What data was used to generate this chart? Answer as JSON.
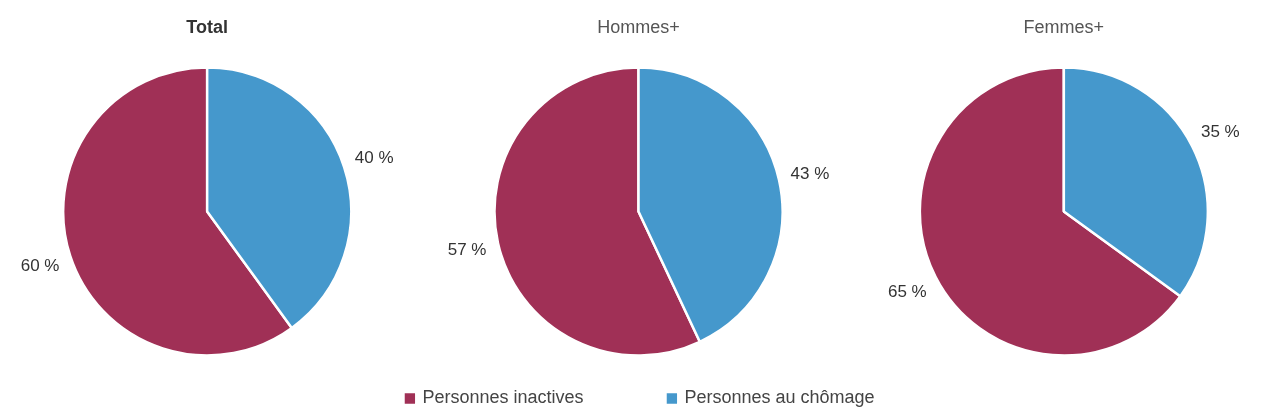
{
  "chart_data": [
    {
      "type": "pie",
      "title": "Total",
      "categories": [
        "Personnes inactives",
        "Personnes au chômage"
      ],
      "values": [
        60,
        40
      ],
      "colors": [
        "#a03056",
        "#4598cc"
      ],
      "value_labels": [
        "60 %",
        "40 %"
      ],
      "legend": "bottom"
    },
    {
      "type": "pie",
      "title": "Hommes+",
      "categories": [
        null,
        null
      ],
      "values": [
        57,
        43
      ],
      "colors": [
        "#a03056",
        "#4598cc"
      ],
      "value_labels": [
        "57 %",
        "43 %"
      ]
    },
    {
      "type": "pie",
      "title": "Femmes+",
      "categories": [
        null,
        null
      ],
      "values": [
        65,
        35
      ],
      "colors": [
        "#a03056",
        "#4598cc"
      ],
      "value_labels": [
        "65 %",
        "35 %"
      ]
    }
  ]
}
